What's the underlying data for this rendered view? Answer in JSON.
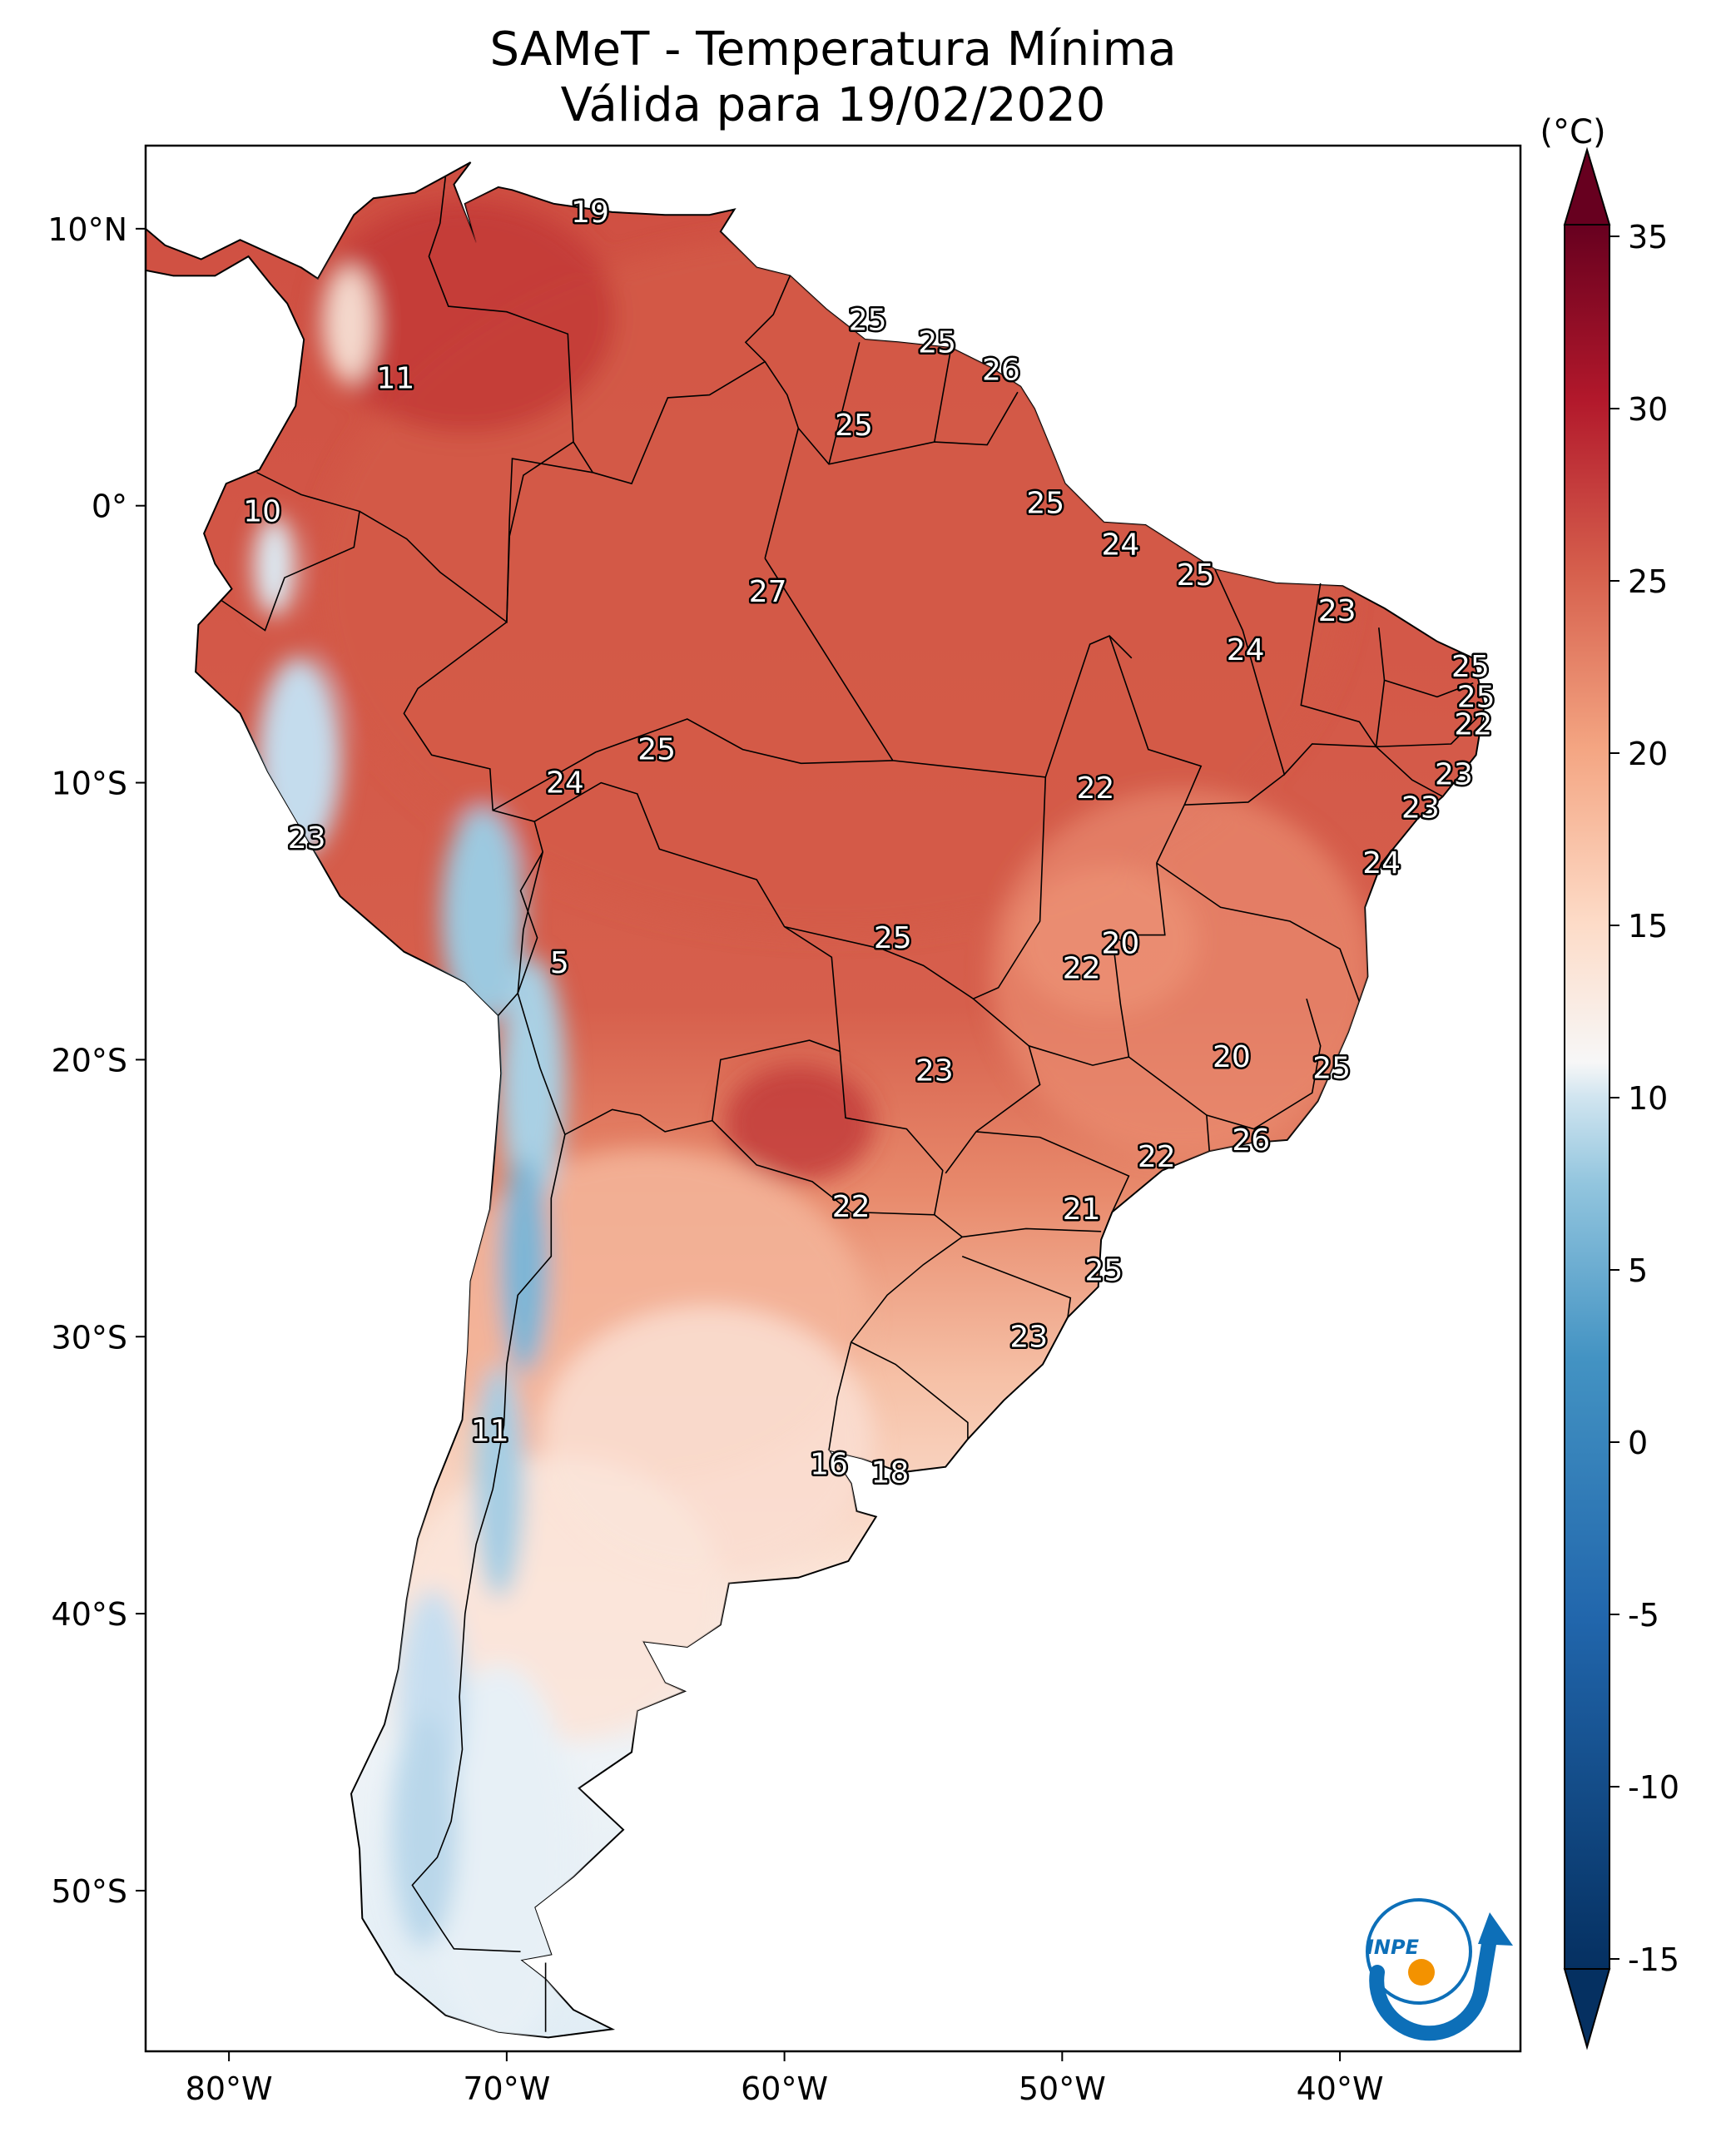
{
  "title": {
    "line1": "SAMeT - Temperatura Mínima",
    "line2": "Válida para 19/02/2020"
  },
  "map": {
    "lon_ticks": [
      "80°W",
      "70°W",
      "60°W",
      "50°W",
      "40°W"
    ],
    "lat_ticks": [
      "10°N",
      "0°",
      "10°S",
      "20°S",
      "30°S",
      "40°S",
      "50°S"
    ],
    "extent": {
      "lon": [
        -83,
        -33.5
      ],
      "lat": [
        -55.8,
        13
      ]
    },
    "values": [
      {
        "lon": -67,
        "lat": 10.6,
        "text": "19"
      },
      {
        "lon": -57,
        "lat": 6.7,
        "text": "25"
      },
      {
        "lon": -54.5,
        "lat": 5.9,
        "text": "25"
      },
      {
        "lon": -52.2,
        "lat": 4.9,
        "text": "26"
      },
      {
        "lon": -74,
        "lat": 4.6,
        "text": "11"
      },
      {
        "lon": -57.5,
        "lat": 2.9,
        "text": "25"
      },
      {
        "lon": -78.8,
        "lat": -0.2,
        "text": "10"
      },
      {
        "lon": -50.6,
        "lat": 0.1,
        "text": "25"
      },
      {
        "lon": -47.9,
        "lat": -1.4,
        "text": "24"
      },
      {
        "lon": -45.2,
        "lat": -2.5,
        "text": "25"
      },
      {
        "lon": -40.1,
        "lat": -3.8,
        "text": "23"
      },
      {
        "lon": -43.4,
        "lat": -5.2,
        "text": "24"
      },
      {
        "lon": -35.3,
        "lat": -5.8,
        "text": "25"
      },
      {
        "lon": -35.1,
        "lat": -6.9,
        "text": "25"
      },
      {
        "lon": -35.2,
        "lat": -7.9,
        "text": "22"
      },
      {
        "lon": -60.6,
        "lat": -3.1,
        "text": "27"
      },
      {
        "lon": -64.6,
        "lat": -8.8,
        "text": "25"
      },
      {
        "lon": -67.9,
        "lat": -10,
        "text": "24"
      },
      {
        "lon": -48.8,
        "lat": -10.2,
        "text": "22"
      },
      {
        "lon": -35.9,
        "lat": -9.7,
        "text": "23"
      },
      {
        "lon": -37.1,
        "lat": -10.9,
        "text": "23"
      },
      {
        "lon": -77.2,
        "lat": -12,
        "text": "23"
      },
      {
        "lon": -38.5,
        "lat": -12.9,
        "text": "24"
      },
      {
        "lon": -47.9,
        "lat": -15.8,
        "text": "20"
      },
      {
        "lon": -49.3,
        "lat": -16.7,
        "text": "22"
      },
      {
        "lon": -56.1,
        "lat": -15.6,
        "text": "25"
      },
      {
        "lon": -68.1,
        "lat": -16.5,
        "text": "5"
      },
      {
        "lon": -43.9,
        "lat": -19.9,
        "text": "20"
      },
      {
        "lon": -40.3,
        "lat": -20.3,
        "text": "25"
      },
      {
        "lon": -54.6,
        "lat": -20.4,
        "text": "23"
      },
      {
        "lon": -43.2,
        "lat": -22.9,
        "text": "26"
      },
      {
        "lon": -46.6,
        "lat": -23.5,
        "text": "22"
      },
      {
        "lon": -57.6,
        "lat": -25.3,
        "text": "22"
      },
      {
        "lon": -49.3,
        "lat": -25.4,
        "text": "21"
      },
      {
        "lon": -48.5,
        "lat": -27.6,
        "text": "25"
      },
      {
        "lon": -51.2,
        "lat": -30,
        "text": "23"
      },
      {
        "lon": -70.6,
        "lat": -33.4,
        "text": "11"
      },
      {
        "lon": -58.4,
        "lat": -34.6,
        "text": "16"
      },
      {
        "lon": -56.2,
        "lat": -34.9,
        "text": "18"
      }
    ]
  },
  "colorbar": {
    "unit": "(°C)",
    "ticks": [
      "35",
      "30",
      "25",
      "20",
      "15",
      "10",
      "5",
      "0",
      "-5",
      "-10",
      "-15"
    ],
    "range": [
      -15,
      35
    ],
    "colors": {
      "low": "#053061",
      "mid_low": "#4393c3",
      "neutral": "#f7f7f7",
      "mid_high": "#f4a582",
      "high": "#b2182b",
      "top": "#67001f"
    }
  },
  "logo": {
    "text": "INPE"
  },
  "colors": {
    "ocean": "#ffffff",
    "land_warm": "#d6604d",
    "land_hot": "#c43c36",
    "land_mild": "#f4a582",
    "land_cool": "#fbe0d2",
    "highlands_cold": "#d1e5f0",
    "andes_cold": "#92c5de",
    "border": "#000000"
  }
}
